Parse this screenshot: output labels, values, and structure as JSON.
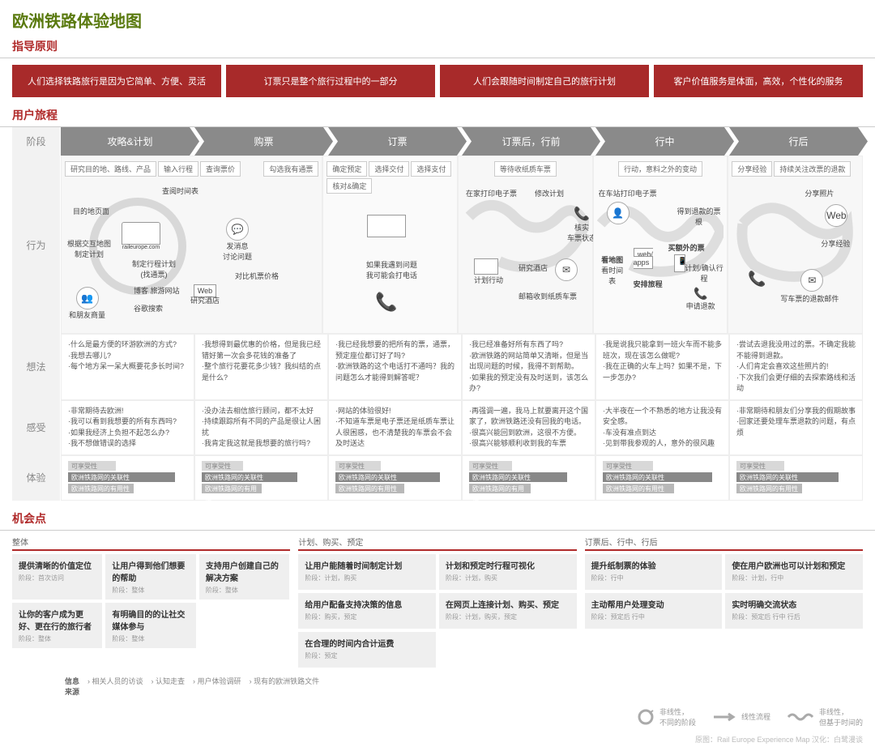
{
  "title": "欧洲铁路体验地图",
  "sections": {
    "principles_title": "指导原则",
    "journey_title": "用户旅程",
    "opportunities_title": "机会点"
  },
  "principles": [
    "人们选择铁路旅行是因为它简单、方便、灵活",
    "订票只是整个旅行过程中的一部分",
    "人们会跟随时间制定自己的旅行计划",
    "客户价值服务是体面，高效，个性化的服务"
  ],
  "row_labels": {
    "stage": "阶段",
    "behavior": "行为",
    "thinking": "想法",
    "feeling": "感受",
    "experience": "体验"
  },
  "stages": [
    "攻略&计划",
    "购票",
    "订票",
    "订票后，行前",
    "行中",
    "行后"
  ],
  "subtabs": {
    "s0": [
      "研究目的地、路线、产品",
      "输入行程",
      "查询票价",
      "勾选我有通票"
    ],
    "s2": [
      "确定预定",
      "选择交付",
      "选择支付",
      "核对&确定"
    ],
    "s3": [
      "等待收纸质车票"
    ],
    "s4": [
      "行动，意料之外的变动"
    ],
    "s5": [
      "分享经验",
      "持续关注改票的退款"
    ]
  },
  "behavior_nodes": {
    "s0": {
      "dest_page": "目的地页面",
      "map_plan": "根据交互地图\n制定计划",
      "raileurope": "raileurope.com",
      "schedule": "查阅时间表",
      "plan_trip": "制定行程计划\n(找通票)",
      "message": "发消息\n讨论问题",
      "friends": "和朋友商量",
      "blog": "博客 旅游网站",
      "hotel": "研究酒店",
      "google": "谷歌搜索",
      "compare": "对比机票价格",
      "web_label": "Web"
    },
    "s2": {
      "problem": "如果我遇到问题\n我可能会打电话"
    },
    "s3": {
      "print": "在家打印电子票",
      "change": "修改计划",
      "verify": "核实\n车票状态",
      "plan_act": "计划行动",
      "hotel2": "研究酒店",
      "mail": "邮箱收到纸质车票"
    },
    "s4": {
      "station": "在车站打印电子票",
      "refund_stub": "得到退款的票根",
      "map": "看地图",
      "schedule2": "看时间表",
      "webapps": "web/\napps",
      "arrange": "安排旅程",
      "extra": "买额外的票",
      "confirm": "计划/确认行程",
      "request": "申请退款"
    },
    "s5": {
      "photo": "分享照片",
      "web2": "Web",
      "share_exp": "分享经验",
      "refund_mail": "写车票的退款邮件"
    }
  },
  "thinking": [
    "·什么是最方便的环游欧洲的方式?\n·我想去哪儿?\n·每个地方呆一呆大概要花多长时间?",
    "·我想得到最优惠的价格，但是我已经错好第一次会多花钱的准备了\n·整个旅行花要花多少钱？我纠结的点是什么?",
    "·我已经我想要的把所有的票，通票，预定座位都订好了吗?\n·欧洲铁路的这个电话打不通吗？我的问题怎么才能得到解答呢？",
    "·我已经准备好所有东西了吗?\n·欧洲铁路的网站简单又清晰，但是当出现问题的时候，我得不到帮助。\n·如果我的预定没有及时送到，该怎么办?",
    "·我是说我只能拿到一班火车而不能多班次，现在该怎么做呢?\n·我在正确的火车上吗？如果不是，下一步怎办?",
    "·尝试去退我没用过的票。不确定我能不能得到退款。\n·人们肯定会喜欢这些照片的!\n·下次我们会更仔细的去探索路线和活动"
  ],
  "feeling": [
    "·非常期待去欧洲!\n·我可以看到我想要的所有东西吗?\n·如果我经济上负担不起怎么办?\n·我不想做错误的选择",
    "·没办法去相信旅行顾问，都不太好\n·持续跟踪所有不同的产品是很让人困扰\n·我肯定我这就是我想要的旅行吗?",
    "·网站的体验很好!\n·不知道车票是电子票还是纸质车票让人很困惑，也不清楚我的车票会不会及时送达",
    "·再强调一遍，我马上就要离开这个国家了，欧洲铁路还没有回我的电话。\n·很高兴能回到欧洲，这很不方便。\n·很高兴能够顺利收到我的车票",
    "·大半夜在一个不熟悉的地方让我没有安全感。\n·车没有准点到达\n·见到带我参观的人，意外的很风趣",
    "·非常期待和朋友们分享我的假期故事\n·回家还要处理车票退款的问题，有点烦"
  ],
  "experience_bars": {
    "labels": [
      "可享受性",
      "欧洲铁路网的关联性",
      "欧洲铁路网的有用性"
    ],
    "colors": [
      "#d8d8d8",
      "#888888",
      "#b8b8b8"
    ],
    "widths": [
      [
        40,
        90,
        55
      ],
      [
        35,
        80,
        50
      ],
      [
        38,
        88,
        58
      ],
      [
        36,
        82,
        52
      ],
      [
        42,
        92,
        60
      ],
      [
        40,
        86,
        55
      ]
    ]
  },
  "opportunities": {
    "groups": [
      {
        "title": "整体",
        "cards": [
          {
            "title": "提供清晰的价值定位",
            "sub": "阶段：首次访问"
          },
          {
            "title": "让用户得到他们想要的帮助",
            "sub": "阶段：整体"
          },
          {
            "title": "支持用户创建自己的解决方案",
            "sub": "阶段：整体"
          },
          {
            "title": "让你的客户成为更好、更在行的旅行者",
            "sub": "阶段：整体"
          },
          {
            "title": "有明确目的的让社交媒体参与",
            "sub": "阶段：整体"
          }
        ]
      },
      {
        "title": "计划、购买、预定",
        "cards": [
          {
            "title": "让用户能随着时间制定计划",
            "sub": "阶段：计划，购买"
          },
          {
            "title": "计划和预定时行程可视化",
            "sub": "阶段：计划，购买"
          },
          {
            "title": "给用户配备支持决策的信息",
            "sub": "阶段：购买，预定"
          },
          {
            "title": "在网页上连接计划、购买、预定",
            "sub": "阶段：计划，购买，预定"
          },
          {
            "title": "在合理的时间内合计运费",
            "sub": "阶段：预定"
          }
        ]
      },
      {
        "title": "订票后、行中、行后",
        "cards": [
          {
            "title": "提升纸制票的体验",
            "sub": "阶段：行中"
          },
          {
            "title": "使在用户欧洲也可以计划和预定",
            "sub": "阶段：计划，行中"
          },
          {
            "title": "主动帮用户处理变动",
            "sub": "阶段：预定后 行中"
          },
          {
            "title": "实时明确交流状态",
            "sub": "阶段：预定后 行中 行后"
          }
        ]
      }
    ]
  },
  "sources": {
    "label": "信息\n来源",
    "items": [
      "相关人员的访谈",
      "认知走查",
      "用户体验调研",
      "现有的欧洲铁路文件"
    ]
  },
  "legend": {
    "nonlinear": "非线性，\n不同的阶段",
    "linear": "线性流程",
    "wavy": "非线性，\n但基于时间的"
  },
  "credit": "原图：Rail Europe Experience Map   汉化：白鹭漫谈"
}
